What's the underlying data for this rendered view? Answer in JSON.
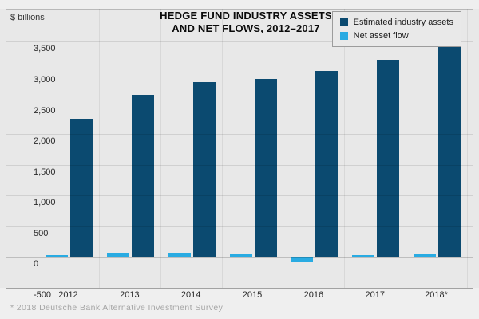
{
  "header": {
    "units_label": "$ billions",
    "title_line1": "HEDGE FUND INDUSTRY ASSETS",
    "title_line2": "AND NET FLOWS, 2012–2017"
  },
  "legend": {
    "items": [
      {
        "label": "Estimated industry assets",
        "color": "#0b4a70"
      },
      {
        "label": "Net asset flow",
        "color": "#29abe2"
      }
    ]
  },
  "footnote": "* 2018 Deutsche Bank Alternative Investment Survey",
  "colors": {
    "assets_bar": "#0b4a70",
    "flow_bar": "#29abe2",
    "background": "#e8e8e8"
  },
  "chart_data": {
    "type": "bar",
    "title": "HEDGE FUND INDUSTRY ASSETS AND NET FLOWS, 2012–2017",
    "ylabel": "$ billions",
    "categories": [
      "2012",
      "2013",
      "2014",
      "2015",
      "2016",
      "2017",
      "2018*"
    ],
    "series": [
      {
        "name": "Estimated industry assets",
        "color": "#0b4a70",
        "values": [
          2250,
          2630,
          2850,
          2900,
          3020,
          3210,
          3420
        ]
      },
      {
        "name": "Net asset flow",
        "color": "#29abe2",
        "values": [
          35,
          65,
          75,
          45,
          -70,
          10,
          40
        ]
      }
    ],
    "ylim": [
      -500,
      3500
    ],
    "ytick_interval": 500,
    "yticks": [
      "3,500",
      "3,000",
      "2,500",
      "2,000",
      "1,500",
      "1,000",
      "500",
      "0",
      "-500"
    ],
    "grid": true,
    "legend_position": "top-right",
    "footnote": "* 2018 Deutsche Bank Alternative Investment Survey"
  }
}
